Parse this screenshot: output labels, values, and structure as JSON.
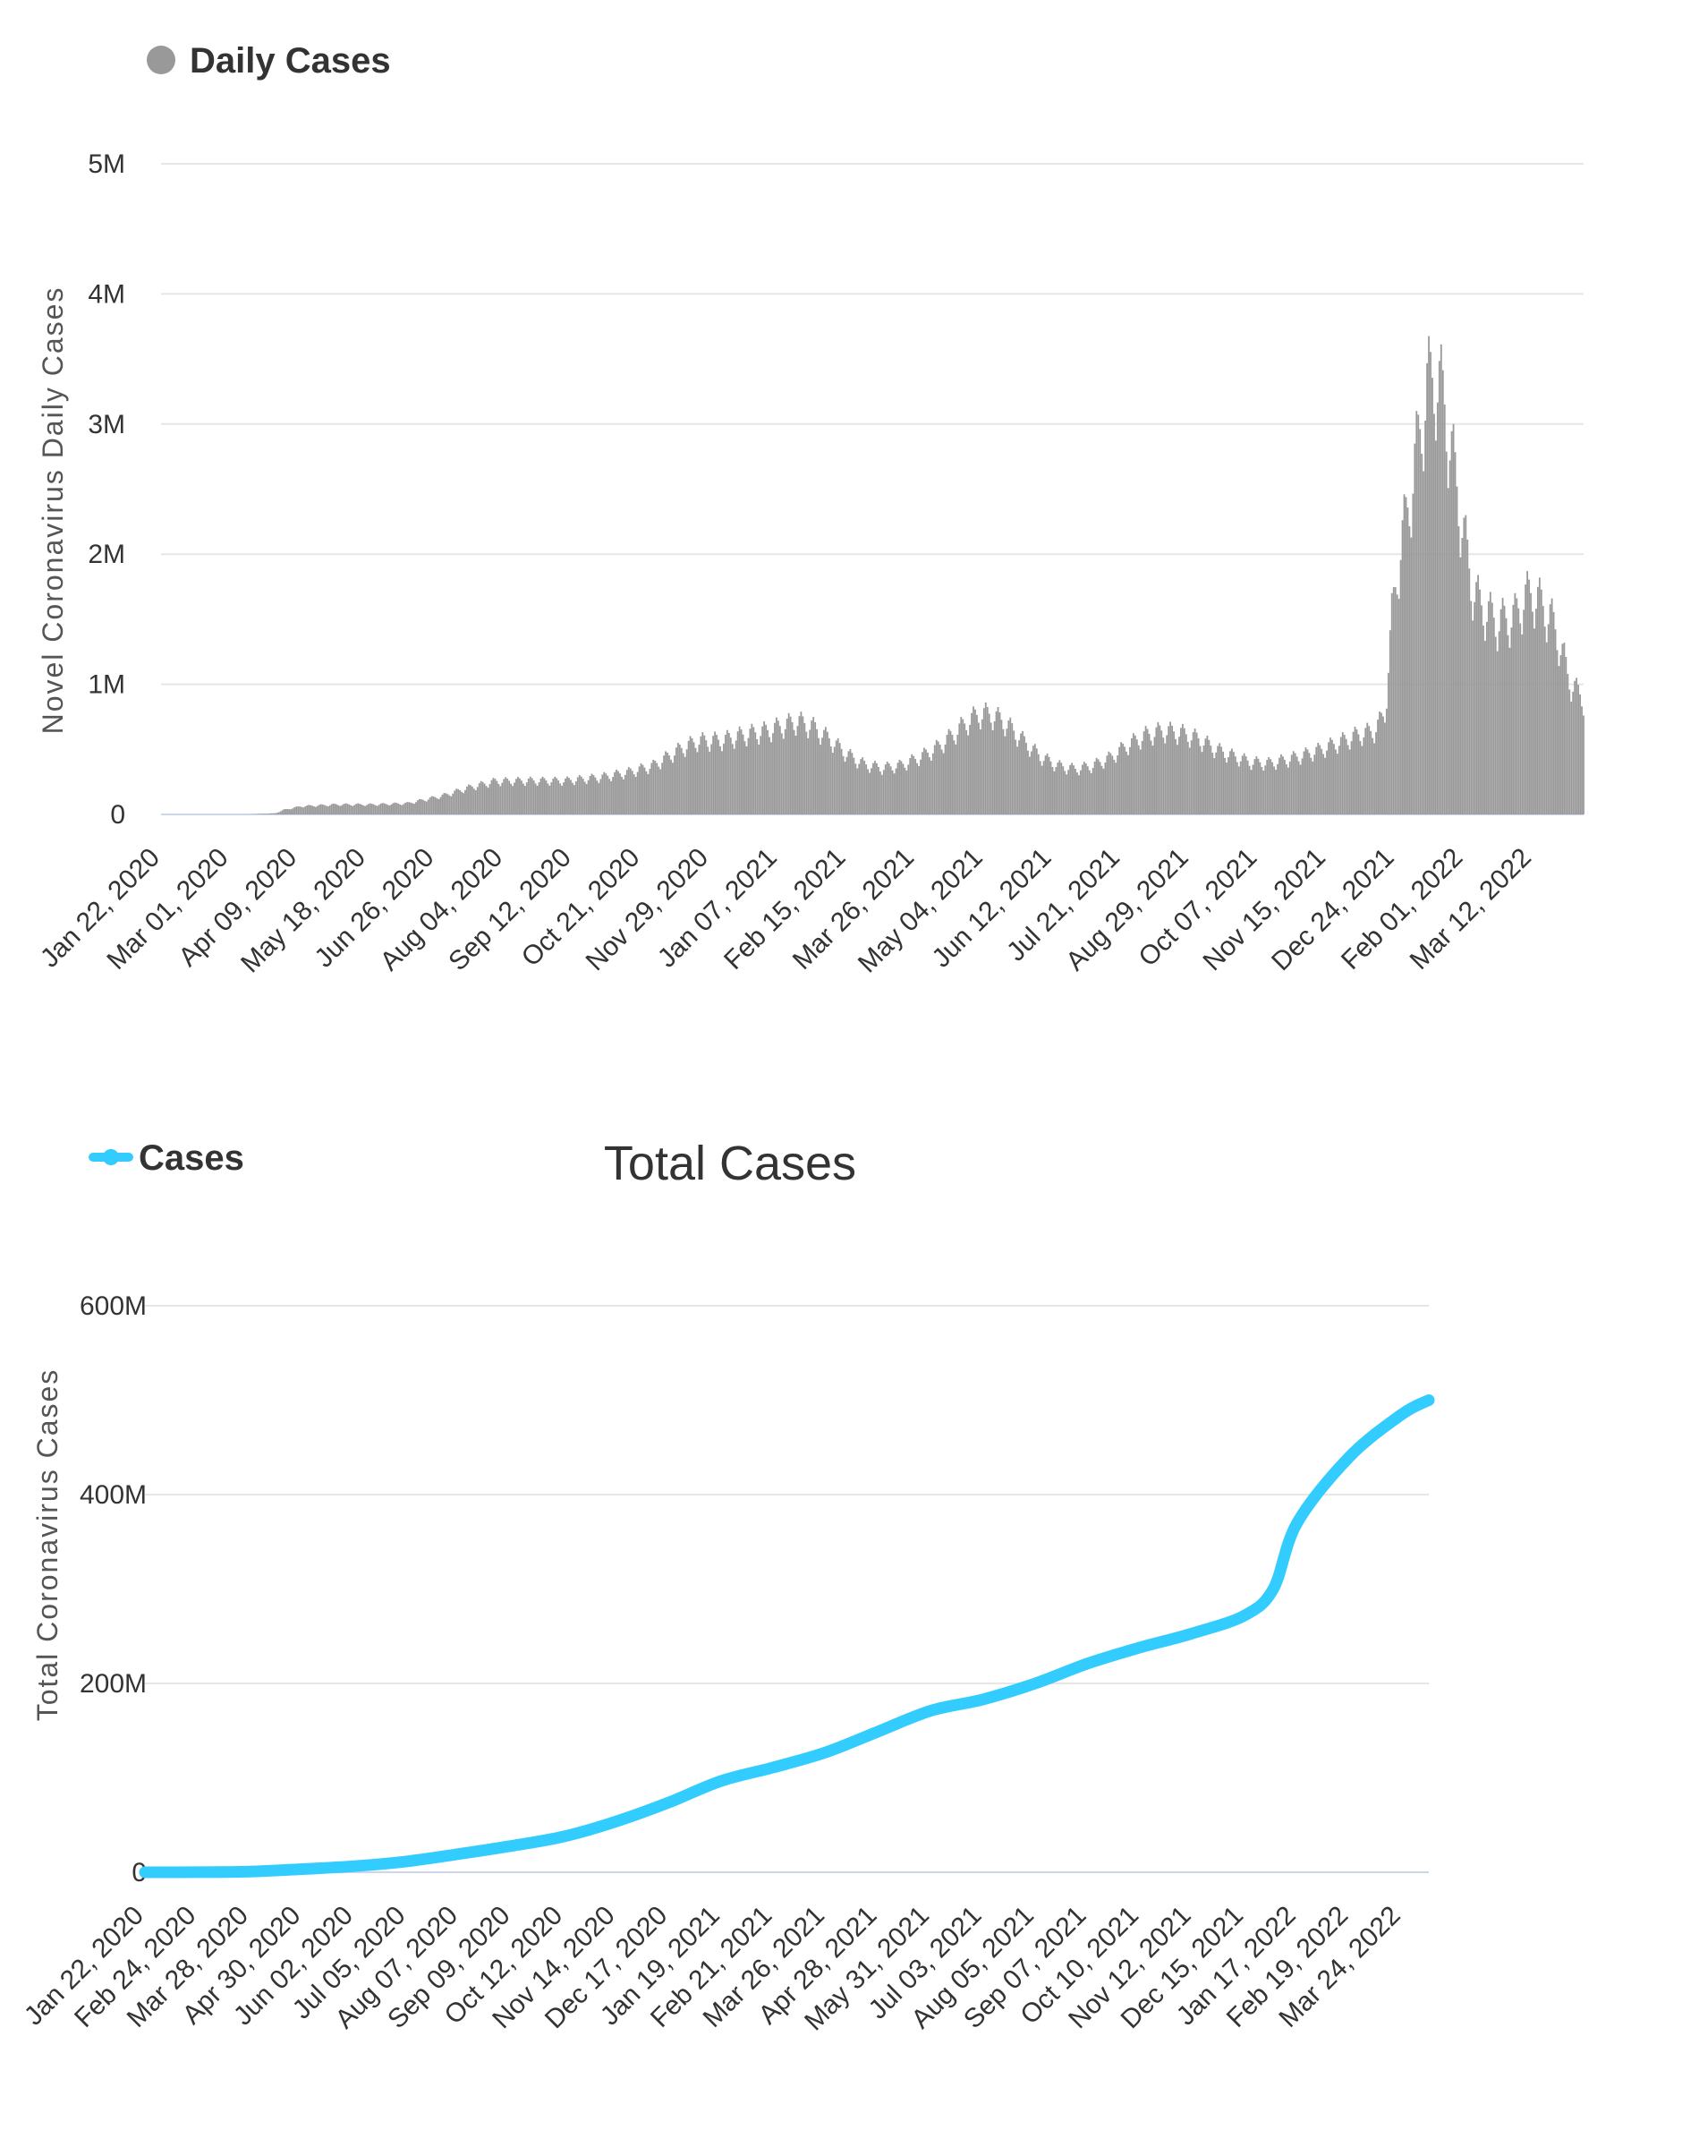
{
  "colors": {
    "daily": "#999999",
    "total": "#33ccff",
    "grid": "#e6e6e6",
    "baseline": "#ccd6eb",
    "text": "#333333"
  },
  "chart_data": [
    {
      "type": "bar",
      "title": "",
      "legend": "Daily Cases",
      "legend_placement": "top-left",
      "ylabel": "Novel Coronavirus Daily Cases",
      "xlabel": "",
      "ylim": [
        0,
        5000000
      ],
      "y_ticks": [
        "0",
        "1M",
        "2M",
        "3M",
        "4M",
        "5M"
      ],
      "x_tick_labels": [
        "Jan 22, 2020",
        "Mar 01, 2020",
        "Apr 09, 2020",
        "May 18, 2020",
        "Jun 26, 2020",
        "Aug 04, 2020",
        "Sep 12, 2020",
        "Oct 21, 2020",
        "Nov 29, 2020",
        "Jan 07, 2021",
        "Feb 15, 2021",
        "Mar 26, 2021",
        "May 04, 2021",
        "Jun 12, 2021",
        "Jul 21, 2021",
        "Aug 29, 2021",
        "Oct 07, 2021",
        "Nov 15, 2021",
        "Dec 24, 2021",
        "Feb 01, 2022",
        "Mar 12, 2022"
      ],
      "x_tick_interval_days": 39,
      "weekly_pattern": [
        1.0,
        0.96,
        0.9,
        0.82,
        0.76,
        0.85,
        0.95
      ],
      "envelope": [
        [
          0,
          0
        ],
        [
          50,
          0
        ],
        [
          65,
          10000
        ],
        [
          70,
          40000
        ],
        [
          80,
          70000
        ],
        [
          100,
          85000
        ],
        [
          120,
          85000
        ],
        [
          140,
          95000
        ],
        [
          160,
          160000
        ],
        [
          175,
          230000
        ],
        [
          190,
          285000
        ],
        [
          210,
          290000
        ],
        [
          230,
          290000
        ],
        [
          250,
          320000
        ],
        [
          265,
          360000
        ],
        [
          280,
          420000
        ],
        [
          295,
          560000
        ],
        [
          305,
          630000
        ],
        [
          320,
          640000
        ],
        [
          330,
          680000
        ],
        [
          345,
          720000
        ],
        [
          355,
          770000
        ],
        [
          362,
          800000
        ],
        [
          370,
          760000
        ],
        [
          380,
          650000
        ],
        [
          390,
          520000
        ],
        [
          400,
          430000
        ],
        [
          410,
          400000
        ],
        [
          420,
          420000
        ],
        [
          430,
          480000
        ],
        [
          440,
          560000
        ],
        [
          450,
          680000
        ],
        [
          458,
          790000
        ],
        [
          465,
          860000
        ],
        [
          472,
          860000
        ],
        [
          480,
          790000
        ],
        [
          490,
          640000
        ],
        [
          500,
          500000
        ],
        [
          510,
          420000
        ],
        [
          520,
          390000
        ],
        [
          530,
          420000
        ],
        [
          540,
          490000
        ],
        [
          550,
          600000
        ],
        [
          560,
          680000
        ],
        [
          570,
          720000
        ],
        [
          580,
          700000
        ],
        [
          590,
          650000
        ],
        [
          600,
          560000
        ],
        [
          610,
          500000
        ],
        [
          620,
          450000
        ],
        [
          630,
          440000
        ],
        [
          640,
          470000
        ],
        [
          650,
          510000
        ],
        [
          660,
          560000
        ],
        [
          670,
          620000
        ],
        [
          680,
          680000
        ],
        [
          690,
          720000
        ],
        [
          696,
          860000
        ],
        [
          700,
          1700000
        ],
        [
          705,
          2300000
        ],
        [
          710,
          2700000
        ],
        [
          715,
          3200000
        ],
        [
          720,
          3650000
        ],
        [
          725,
          3780000
        ],
        [
          730,
          3500000
        ],
        [
          735,
          3000000
        ],
        [
          740,
          2500000
        ],
        [
          745,
          2000000
        ],
        [
          750,
          1800000
        ],
        [
          760,
          1650000
        ],
        [
          770,
          1700000
        ],
        [
          775,
          1850000
        ],
        [
          780,
          1900000
        ],
        [
          790,
          1700000
        ],
        [
          795,
          1500000
        ],
        [
          800,
          1200000
        ],
        [
          805,
          1050000
        ],
        [
          809,
          1000000
        ]
      ]
    },
    {
      "type": "line",
      "title": "Total Cases",
      "legend": "Cases",
      "legend_placement": "top-left",
      "ylabel": "Total Coronavirus Cases",
      "xlabel": "",
      "ylim": [
        0,
        600000000
      ],
      "y_ticks": [
        "0",
        "200M",
        "400M",
        "600M"
      ],
      "x_tick_labels": [
        "Jan 22, 2020",
        "Feb 24, 2020",
        "Mar 28, 2020",
        "Apr 30, 2020",
        "Jun 02, 2020",
        "Jul 05, 2020",
        "Aug 07, 2020",
        "Sep 09, 2020",
        "Oct 12, 2020",
        "Nov 14, 2020",
        "Dec 17, 2020",
        "Jan 19, 2021",
        "Feb 21, 2021",
        "Mar 26, 2021",
        "Apr 28, 2021",
        "May 31, 2021",
        "Jul 03, 2021",
        "Aug 05, 2021",
        "Sep 07, 2021",
        "Oct 10, 2021",
        "Nov 12, 2021",
        "Dec 15, 2021",
        "Jan 17, 2022",
        "Feb 19, 2022",
        "Mar 24, 2022"
      ],
      "x_tick_interval_days": 33,
      "series": [
        {
          "name": "Cases",
          "x_days": [
            0,
            33,
            66,
            99,
            132,
            165,
            198,
            231,
            264,
            297,
            330,
            363,
            396,
            429,
            462,
            495,
            528,
            561,
            594,
            627,
            660,
            693,
            711,
            726,
            759,
            792,
            809
          ],
          "values": [
            0,
            100000,
            700000,
            3300000,
            6400000,
            11500000,
            19300000,
            27900000,
            37900000,
            53800000,
            73800000,
            96600000,
            111000000,
            127000000,
            149000000,
            171000000,
            183000000,
            200000000,
            221000000,
            238000000,
            253000000,
            272000000,
            300000000,
            370000000,
            440000000,
            485000000,
            500000000
          ]
        }
      ]
    }
  ]
}
